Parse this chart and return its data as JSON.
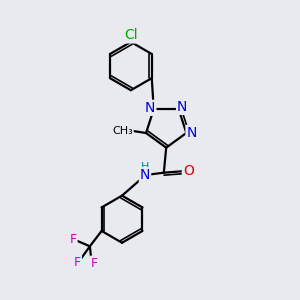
{
  "background_color": "#e8eaf0",
  "atom_colors": {
    "C": "#000000",
    "N": "#0000dd",
    "O": "#dd0000",
    "Cl": "#00aa00",
    "F": "#cc00cc",
    "H": "#008888"
  },
  "bond_color": "#000000",
  "bond_width": 1.6,
  "font_size": 10,
  "fig_size": [
    3.0,
    3.0
  ],
  "dpi": 100
}
